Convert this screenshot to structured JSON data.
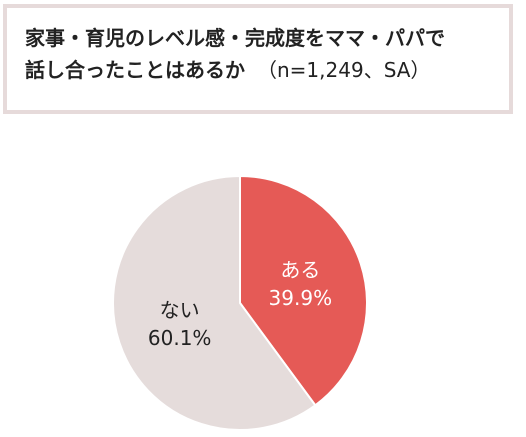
{
  "title": {
    "line1": "家事・育児のレベル感・完成度をママ・パパで",
    "line2": "話し合ったことはあるか",
    "note": "（n=1,249、SA）"
  },
  "chart_data": {
    "type": "pie",
    "title": "家事・育児のレベル感・完成度をママ・パパで話し合ったことはあるか（n=1,249、SA）",
    "start_angle_deg": 0,
    "direction": "clockwise",
    "slices": [
      {
        "label": "ある",
        "value": 39.9,
        "value_text": "39.9%",
        "color": "#e55a56",
        "text_color": "#ffffff"
      },
      {
        "label": "ない",
        "value": 60.1,
        "value_text": "60.1%",
        "color": "#e5dcdb",
        "text_color": "#222222"
      }
    ]
  }
}
